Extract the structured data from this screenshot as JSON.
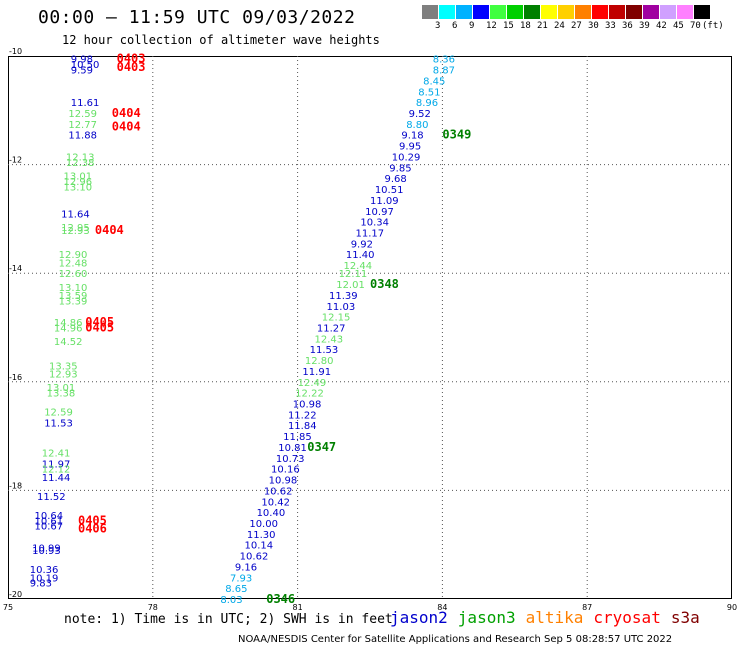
{
  "header": {
    "title": "00:00 — 11:59 UTC 09/03/2022",
    "subtitle": "12 hour collection of altimeter wave heights"
  },
  "legend": {
    "colors": [
      "#7f7f7f",
      "#00ffff",
      "#00b2ff",
      "#0000ff",
      "#40ff40",
      "#00d000",
      "#008000",
      "#ffff00",
      "#ffd000",
      "#ff8000",
      "#ff0000",
      "#c00000",
      "#800000",
      "#a000a0",
      "#d0a0ff",
      "#ff80ff",
      "#000000"
    ],
    "labels": [
      "3",
      "6",
      "9",
      "12",
      "15",
      "18",
      "21",
      "24",
      "27",
      "30",
      "33",
      "36",
      "39",
      "42",
      "45",
      "70",
      "(ft)"
    ]
  },
  "axes": {
    "x_ticks": [
      {
        "value": 75,
        "label": "75"
      },
      {
        "value": 78,
        "label": "78"
      },
      {
        "value": 81,
        "label": "81"
      },
      {
        "value": 84,
        "label": "84"
      },
      {
        "value": 87,
        "label": "87"
      },
      {
        "value": 90,
        "label": "90"
      }
    ],
    "y_ticks": [
      {
        "value": -10,
        "label": "-10"
      },
      {
        "value": -12,
        "label": "-12"
      },
      {
        "value": -14,
        "label": "-14"
      },
      {
        "value": -16,
        "label": "-16"
      },
      {
        "value": -18,
        "label": "-18"
      },
      {
        "value": -20,
        "label": "-20"
      }
    ],
    "x_range": [
      75,
      90
    ],
    "y_range": [
      -20,
      -10
    ],
    "grid": "dotted"
  },
  "satellites": [
    {
      "name": "jason2",
      "color": "#0000cc"
    },
    {
      "name": "jason3",
      "color": "#00a000"
    },
    {
      "name": "altika",
      "color": "#ff8000"
    },
    {
      "name": "cryosat",
      "color": "#ff0000"
    },
    {
      "name": "s3a",
      "color": "#800000"
    }
  ],
  "colors": {
    "blue": "#0000c8",
    "light_green": "#66e066",
    "cyan": "#00a8e8",
    "red": "#ff0000",
    "dark_green": "#008000"
  },
  "chart_data": {
    "type": "scatter",
    "observations": [
      {
        "lon": 83.8,
        "lat": -10.05,
        "v": "8.36",
        "c": "cyan"
      },
      {
        "lon": 83.8,
        "lat": -10.25,
        "v": "8.87",
        "c": "cyan"
      },
      {
        "lon": 83.6,
        "lat": -10.45,
        "v": "8.45",
        "c": "cyan"
      },
      {
        "lon": 83.5,
        "lat": -10.65,
        "v": "8.51",
        "c": "cyan"
      },
      {
        "lon": 83.45,
        "lat": -10.85,
        "v": "8.96",
        "c": "cyan"
      },
      {
        "lon": 83.3,
        "lat": -11.05,
        "v": "9.52",
        "c": "blue"
      },
      {
        "lon": 83.25,
        "lat": -11.25,
        "v": "8.80",
        "c": "cyan"
      },
      {
        "lon": 83.15,
        "lat": -11.45,
        "v": "9.18",
        "c": "blue"
      },
      {
        "lon": 83.1,
        "lat": -11.65,
        "v": "9.95",
        "c": "blue"
      },
      {
        "lon": 82.95,
        "lat": -11.85,
        "v": "10.29",
        "c": "blue"
      },
      {
        "lon": 82.9,
        "lat": -12.05,
        "v": "9.85",
        "c": "blue"
      },
      {
        "lon": 82.8,
        "lat": -12.25,
        "v": "9.68",
        "c": "blue"
      },
      {
        "lon": 82.6,
        "lat": -12.45,
        "v": "10.51",
        "c": "blue"
      },
      {
        "lon": 82.5,
        "lat": -12.65,
        "v": "11.09",
        "c": "blue"
      },
      {
        "lon": 82.4,
        "lat": -12.85,
        "v": "10.97",
        "c": "blue"
      },
      {
        "lon": 82.3,
        "lat": -13.05,
        "v": "10.34",
        "c": "blue"
      },
      {
        "lon": 82.2,
        "lat": -13.25,
        "v": "11.17",
        "c": "blue"
      },
      {
        "lon": 82.1,
        "lat": -13.45,
        "v": "9.92",
        "c": "blue"
      },
      {
        "lon": 82.0,
        "lat": -13.65,
        "v": "11.40",
        "c": "blue"
      },
      {
        "lon": 81.95,
        "lat": -13.85,
        "v": "12.44",
        "c": "lightgreen"
      },
      {
        "lon": 81.85,
        "lat": -14.0,
        "v": "12.11",
        "c": "lightgreen"
      },
      {
        "lon": 81.8,
        "lat": -14.2,
        "v": "12.01",
        "c": "lightgreen"
      },
      {
        "lon": 81.65,
        "lat": -14.4,
        "v": "11.39",
        "c": "blue"
      },
      {
        "lon": 81.6,
        "lat": -14.6,
        "v": "11.03",
        "c": "blue"
      },
      {
        "lon": 81.5,
        "lat": -14.8,
        "v": "12.15",
        "c": "lightgreen"
      },
      {
        "lon": 81.4,
        "lat": -15.0,
        "v": "11.27",
        "c": "blue"
      },
      {
        "lon": 81.35,
        "lat": -15.2,
        "v": "12.43",
        "c": "lightgreen"
      },
      {
        "lon": 81.25,
        "lat": -15.4,
        "v": "11.53",
        "c": "blue"
      },
      {
        "lon": 81.15,
        "lat": -15.6,
        "v": "12.80",
        "c": "lightgreen"
      },
      {
        "lon": 81.1,
        "lat": -15.8,
        "v": "11.91",
        "c": "blue"
      },
      {
        "lon": 81.0,
        "lat": -16.0,
        "v": "12.49",
        "c": "lightgreen"
      },
      {
        "lon": 80.95,
        "lat": -16.2,
        "v": "12.22",
        "c": "lightgreen"
      },
      {
        "lon": 80.9,
        "lat": -16.4,
        "v": "10.98",
        "c": "blue"
      },
      {
        "lon": 80.8,
        "lat": -16.6,
        "v": "11.22",
        "c": "blue"
      },
      {
        "lon": 80.8,
        "lat": -16.8,
        "v": "11.84",
        "c": "blue"
      },
      {
        "lon": 80.7,
        "lat": -17.0,
        "v": "11.85",
        "c": "blue"
      },
      {
        "lon": 80.6,
        "lat": -17.2,
        "v": "10.81",
        "c": "blue"
      },
      {
        "lon": 80.55,
        "lat": -17.4,
        "v": "10.73",
        "c": "blue"
      },
      {
        "lon": 80.45,
        "lat": -17.6,
        "v": "10.16",
        "c": "blue"
      },
      {
        "lon": 80.4,
        "lat": -17.8,
        "v": "10.98",
        "c": "blue"
      },
      {
        "lon": 80.3,
        "lat": -18.0,
        "v": "10.62",
        "c": "blue"
      },
      {
        "lon": 80.25,
        "lat": -18.2,
        "v": "10.42",
        "c": "blue"
      },
      {
        "lon": 80.15,
        "lat": -18.4,
        "v": "10.40",
        "c": "blue"
      },
      {
        "lon": 80.0,
        "lat": -18.6,
        "v": "10.00",
        "c": "blue"
      },
      {
        "lon": 79.95,
        "lat": -18.8,
        "v": "11.30",
        "c": "blue"
      },
      {
        "lon": 79.9,
        "lat": -19.0,
        "v": "10.14",
        "c": "blue"
      },
      {
        "lon": 79.8,
        "lat": -19.2,
        "v": "10.62",
        "c": "blue"
      },
      {
        "lon": 79.7,
        "lat": -19.4,
        "v": "9.16",
        "c": "blue"
      },
      {
        "lon": 79.6,
        "lat": -19.6,
        "v": "7.93",
        "c": "cyan"
      },
      {
        "lon": 79.5,
        "lat": -19.8,
        "v": "8.65",
        "c": "cyan"
      },
      {
        "lon": 79.4,
        "lat": -20.0,
        "v": "8.03",
        "c": "cyan"
      },
      {
        "lon": 76.3,
        "lat": -10.05,
        "v": "9.98",
        "c": "blue"
      },
      {
        "lon": 76.3,
        "lat": -10.15,
        "v": "10.50",
        "c": "blue"
      },
      {
        "lon": 76.3,
        "lat": -10.25,
        "v": "9.59",
        "c": "blue"
      },
      {
        "lon": 76.3,
        "lat": -10.85,
        "v": "11.61",
        "c": "blue"
      },
      {
        "lon": 76.25,
        "lat": -11.05,
        "v": "12.59",
        "c": "lightgreen"
      },
      {
        "lon": 76.25,
        "lat": -11.25,
        "v": "12.77",
        "c": "lightgreen"
      },
      {
        "lon": 76.25,
        "lat": -11.45,
        "v": "11.88",
        "c": "blue"
      },
      {
        "lon": 76.2,
        "lat": -11.85,
        "v": "12.13",
        "c": "lightgreen"
      },
      {
        "lon": 76.2,
        "lat": -11.95,
        "v": "12.38",
        "c": "lightgreen"
      },
      {
        "lon": 76.15,
        "lat": -12.2,
        "v": "13.01",
        "c": "lightgreen"
      },
      {
        "lon": 76.15,
        "lat": -12.3,
        "v": "12.96",
        "c": "lightgreen"
      },
      {
        "lon": 76.15,
        "lat": -12.4,
        "v": "13.10",
        "c": "lightgreen"
      },
      {
        "lon": 76.1,
        "lat": -12.9,
        "v": "11.64",
        "c": "blue"
      },
      {
        "lon": 76.1,
        "lat": -13.15,
        "v": "12.95",
        "c": "lightgreen"
      },
      {
        "lon": 76.1,
        "lat": -13.2,
        "v": "12.93",
        "c": "lightgreen"
      },
      {
        "lon": 76.05,
        "lat": -13.65,
        "v": "12.90",
        "c": "lightgreen"
      },
      {
        "lon": 76.05,
        "lat": -13.8,
        "v": "12.48",
        "c": "lightgreen"
      },
      {
        "lon": 76.05,
        "lat": -14.0,
        "v": "12.60",
        "c": "lightgreen"
      },
      {
        "lon": 76.05,
        "lat": -14.25,
        "v": "13.10",
        "c": "lightgreen"
      },
      {
        "lon": 76.05,
        "lat": -14.4,
        "v": "13.59",
        "c": "lightgreen"
      },
      {
        "lon": 76.05,
        "lat": -14.5,
        "v": "13.39",
        "c": "lightgreen"
      },
      {
        "lon": 75.95,
        "lat": -14.9,
        "v": "14.86",
        "c": "lightgreen"
      },
      {
        "lon": 75.95,
        "lat": -15.0,
        "v": "14.96",
        "c": "lightgreen"
      },
      {
        "lon": 75.95,
        "lat": -15.25,
        "v": "14.52",
        "c": "lightgreen"
      },
      {
        "lon": 75.85,
        "lat": -15.7,
        "v": "13.35",
        "c": "lightgreen"
      },
      {
        "lon": 75.85,
        "lat": -15.85,
        "v": "12.93",
        "c": "lightgreen"
      },
      {
        "lon": 75.8,
        "lat": -16.1,
        "v": "13.01",
        "c": "lightgreen"
      },
      {
        "lon": 75.8,
        "lat": -16.2,
        "v": "13.38",
        "c": "lightgreen"
      },
      {
        "lon": 75.75,
        "lat": -16.55,
        "v": "12.59",
        "c": "lightgreen"
      },
      {
        "lon": 75.75,
        "lat": -16.75,
        "v": "11.53",
        "c": "blue"
      },
      {
        "lon": 75.7,
        "lat": -17.3,
        "v": "12.41",
        "c": "lightgreen"
      },
      {
        "lon": 75.7,
        "lat": -17.5,
        "v": "11.97",
        "c": "blue"
      },
      {
        "lon": 75.7,
        "lat": -17.6,
        "v": "12.12",
        "c": "lightgreen"
      },
      {
        "lon": 75.7,
        "lat": -17.75,
        "v": "11.44",
        "c": "blue"
      },
      {
        "lon": 75.6,
        "lat": -18.1,
        "v": "11.52",
        "c": "blue"
      },
      {
        "lon": 75.55,
        "lat": -18.45,
        "v": "10.64",
        "c": "blue"
      },
      {
        "lon": 75.55,
        "lat": -18.55,
        "v": "10.61",
        "c": "blue"
      },
      {
        "lon": 75.55,
        "lat": -18.65,
        "v": "10.67",
        "c": "blue"
      },
      {
        "lon": 75.5,
        "lat": -19.05,
        "v": "10.99",
        "c": "blue"
      },
      {
        "lon": 75.5,
        "lat": -19.1,
        "v": "10.93",
        "c": "blue"
      },
      {
        "lon": 75.45,
        "lat": -19.45,
        "v": "10.36",
        "c": "blue"
      },
      {
        "lon": 75.45,
        "lat": -19.6,
        "v": "10.19",
        "c": "blue"
      },
      {
        "lon": 75.45,
        "lat": -19.7,
        "v": "9.83",
        "c": "blue"
      }
    ],
    "pass_labels": [
      {
        "lon": 84.0,
        "lat": -11.45,
        "v": "0349",
        "c": "darkgreen"
      },
      {
        "lon": 82.5,
        "lat": -14.2,
        "v": "0348",
        "c": "darkgreen"
      },
      {
        "lon": 81.2,
        "lat": -17.2,
        "v": "0347",
        "c": "darkgreen"
      },
      {
        "lon": 80.35,
        "lat": -20.0,
        "v": "0346",
        "c": "darkgreen"
      },
      {
        "lon": 77.25,
        "lat": -10.05,
        "v": "0403",
        "c": "red"
      },
      {
        "lon": 77.25,
        "lat": -10.2,
        "v": "0403",
        "c": "red"
      },
      {
        "lon": 77.15,
        "lat": -11.05,
        "v": "0404",
        "c": "red"
      },
      {
        "lon": 77.15,
        "lat": -11.3,
        "v": "0404",
        "c": "red"
      },
      {
        "lon": 76.8,
        "lat": -13.2,
        "v": "0404",
        "c": "red"
      },
      {
        "lon": 76.6,
        "lat": -14.9,
        "v": "0405",
        "c": "red"
      },
      {
        "lon": 76.6,
        "lat": -15.0,
        "v": "0405",
        "c": "red"
      },
      {
        "lon": 76.45,
        "lat": -18.55,
        "v": "0405",
        "c": "red"
      },
      {
        "lon": 76.45,
        "lat": -18.7,
        "v": "0406",
        "c": "red"
      }
    ]
  },
  "footer": {
    "note": "note: 1) Time is in UTC; 2) SWH is in feet",
    "credit": "NOAA/NESDIS Center for Satellite Applications and Research   Sep  5 08:28:57 UTC 2022"
  }
}
